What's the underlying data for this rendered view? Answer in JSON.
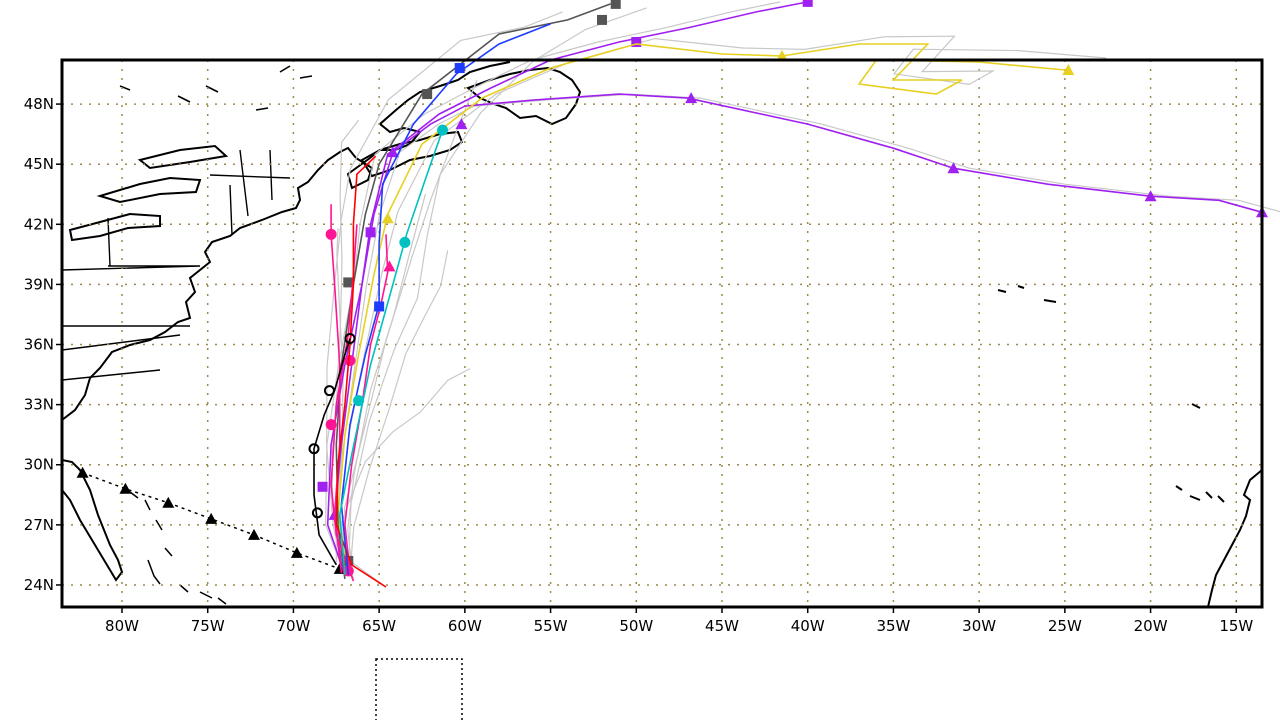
{
  "map": {
    "lon_range": [
      -83.5,
      -13.5
    ],
    "lat_range": [
      22.9,
      50.2
    ],
    "gridline_style": "dotted",
    "gridline_color": "#9c8a4a",
    "coastline_color": "#000000",
    "x_ticks": [
      {
        "lon": -80,
        "label": "80W"
      },
      {
        "lon": -75,
        "label": "75W"
      },
      {
        "lon": -70,
        "label": "70W"
      },
      {
        "lon": -65,
        "label": "65W"
      },
      {
        "lon": -60,
        "label": "60W"
      },
      {
        "lon": -55,
        "label": "55W"
      },
      {
        "lon": -50,
        "label": "50W"
      },
      {
        "lon": -45,
        "label": "45W"
      },
      {
        "lon": -40,
        "label": "40W"
      },
      {
        "lon": -35,
        "label": "35W"
      },
      {
        "lon": -30,
        "label": "30W"
      },
      {
        "lon": -25,
        "label": "25W"
      },
      {
        "lon": -20,
        "label": "20W"
      },
      {
        "lon": -15,
        "label": "15W"
      }
    ],
    "y_ticks": [
      {
        "lat": 24,
        "label": "24N"
      },
      {
        "lat": 27,
        "label": "27N"
      },
      {
        "lat": 30,
        "label": "30N"
      },
      {
        "lat": 33,
        "label": "33N"
      },
      {
        "lat": 36,
        "label": "36N"
      },
      {
        "lat": 39,
        "label": "39N"
      },
      {
        "lat": 42,
        "label": "42N"
      },
      {
        "lat": 45,
        "label": "45N"
      },
      {
        "lat": 48,
        "label": "48N"
      }
    ]
  },
  "observed_track": {
    "name": "observed-track",
    "color": "#000000",
    "style": "dotted",
    "marker": "triangle",
    "points": [
      [
        -82.3,
        29.6
      ],
      [
        -79.8,
        28.8
      ],
      [
        -77.3,
        28.1
      ],
      [
        -74.8,
        27.3
      ],
      [
        -72.3,
        26.5
      ],
      [
        -69.8,
        25.6
      ],
      [
        -67.3,
        24.8
      ]
    ]
  },
  "forecast_tracks": [
    {
      "color": "#a020f0",
      "marker": "triangle",
      "points": [
        [
          -67.2,
          25.0
        ],
        [
          -67.6,
          27.5
        ],
        [
          -67.2,
          31.0
        ],
        [
          -66.6,
          35.0
        ],
        [
          -66.0,
          39.0
        ],
        [
          -65.3,
          42.5
        ],
        [
          -64.2,
          45.6
        ],
        [
          -62.0,
          47.0
        ],
        [
          -60.0,
          47.9
        ],
        [
          -56.0,
          48.2
        ],
        [
          -51.0,
          48.5
        ],
        [
          -47.0,
          48.3
        ],
        [
          -40.0,
          47.0
        ],
        [
          -35.0,
          45.8
        ],
        [
          -31.5,
          44.8
        ],
        [
          -26.0,
          44.0
        ],
        [
          -20.0,
          43.4
        ],
        [
          -16.0,
          43.2
        ],
        [
          -13.5,
          42.6
        ]
      ],
      "markers": [
        [
          -67.6,
          27.5
        ],
        [
          -64.2,
          45.6
        ],
        [
          -60.2,
          47.0
        ],
        [
          -46.8,
          48.3
        ],
        [
          -31.5,
          44.8
        ],
        [
          -20.0,
          43.4
        ],
        [
          -13.5,
          42.6
        ]
      ]
    },
    {
      "color": "#a020f0",
      "marker": "square",
      "points": [
        [
          -67.0,
          24.5
        ],
        [
          -68.0,
          27.0
        ],
        [
          -67.8,
          31.0
        ],
        [
          -67.0,
          35.0
        ],
        [
          -66.0,
          39.0
        ],
        [
          -65.5,
          42.0
        ],
        [
          -64.5,
          45.5
        ],
        [
          -61.5,
          47.5
        ],
        [
          -58.5,
          48.8
        ],
        [
          -55.0,
          50.2
        ],
        [
          -51.0,
          51.1
        ],
        [
          -47.0,
          51.8
        ],
        [
          -43.0,
          52.6
        ],
        [
          -40.0,
          53.1
        ]
      ],
      "markers": [
        [
          -68.3,
          28.9
        ],
        [
          -65.5,
          41.6
        ],
        [
          -50.0,
          51.1
        ],
        [
          -40.0,
          53.1
        ]
      ]
    },
    {
      "color": "#e8d020",
      "marker": "triangle",
      "points": [
        [
          -66.8,
          24.5
        ],
        [
          -67.4,
          27.5
        ],
        [
          -67.0,
          31.5
        ],
        [
          -66.2,
          35.5
        ],
        [
          -65.3,
          39.5
        ],
        [
          -64.5,
          42.5
        ],
        [
          -62.5,
          46.0
        ],
        [
          -59.0,
          48.3
        ],
        [
          -55.0,
          49.8
        ],
        [
          -50.0,
          51.0
        ],
        [
          -45.0,
          50.5
        ],
        [
          -41.5,
          50.4
        ],
        [
          -37.0,
          51.0
        ],
        [
          -33.0,
          51.0
        ],
        [
          -35.0,
          49.2
        ],
        [
          -31.0,
          49.2
        ],
        [
          -32.5,
          48.5
        ],
        [
          -37.0,
          49.0
        ],
        [
          -36.0,
          50.2
        ],
        [
          -30.0,
          50.1
        ],
        [
          -25.0,
          49.7
        ]
      ],
      "markers": [
        [
          -64.5,
          42.3
        ],
        [
          -41.5,
          50.4
        ],
        [
          -24.8,
          49.7
        ]
      ]
    },
    {
      "color": "#555555",
      "marker": "square",
      "points": [
        [
          -67.0,
          24.3
        ],
        [
          -67.4,
          27.0
        ],
        [
          -67.5,
          31.0
        ],
        [
          -67.2,
          35.0
        ],
        [
          -66.5,
          39.0
        ],
        [
          -65.8,
          42.5
        ],
        [
          -65.0,
          45.0
        ],
        [
          -62.5,
          48.5
        ],
        [
          -58.0,
          51.5
        ],
        [
          -54.0,
          52.2
        ],
        [
          -51.5,
          53.0
        ]
      ],
      "markers": [
        [
          -66.8,
          25.2
        ],
        [
          -66.8,
          39.1
        ],
        [
          -62.2,
          48.5
        ],
        [
          -52.0,
          52.2
        ],
        [
          -51.2,
          53.0
        ]
      ]
    },
    {
      "color": "#ff1493",
      "marker": "circle",
      "points": [
        [
          -66.5,
          24.2
        ],
        [
          -67.5,
          26.5
        ],
        [
          -67.8,
          29.0
        ],
        [
          -67.5,
          33.0
        ],
        [
          -66.8,
          36.5
        ],
        [
          -66.5,
          39.5
        ],
        [
          -66.3,
          42.0
        ]
      ],
      "markers": [
        [
          -66.8,
          24.7
        ],
        [
          -67.8,
          32.0
        ],
        [
          -66.7,
          35.2
        ]
      ]
    },
    {
      "color": "#ff1493",
      "marker": "circle",
      "points": [
        [
          -67.2,
          24.6
        ],
        [
          -67.6,
          27.5
        ],
        [
          -67.3,
          31.0
        ],
        [
          -67.3,
          35.0
        ],
        [
          -67.6,
          39.0
        ],
        [
          -67.8,
          41.5
        ],
        [
          -67.8,
          43.0
        ]
      ],
      "markers": [
        [
          -67.8,
          41.5
        ]
      ]
    },
    {
      "color": "#ff1493",
      "marker": "triangle",
      "points": [
        [
          -66.7,
          24.6
        ],
        [
          -67.0,
          27.0
        ],
        [
          -66.6,
          30.0
        ],
        [
          -66.0,
          33.0
        ],
        [
          -65.5,
          36.0
        ],
        [
          -64.9,
          38.0
        ],
        [
          -64.5,
          39.6
        ],
        [
          -64.6,
          41.5
        ]
      ],
      "markers": [
        [
          -64.4,
          39.9
        ]
      ]
    },
    {
      "color": "#ff0000",
      "marker": "none",
      "points": [
        [
          -64.6,
          23.9
        ],
        [
          -66.6,
          25.0
        ],
        [
          -67.5,
          27.0
        ],
        [
          -67.4,
          30.0
        ],
        [
          -67.0,
          33.0
        ],
        [
          -66.7,
          36.0
        ],
        [
          -66.5,
          39.0
        ],
        [
          -66.5,
          42.0
        ],
        [
          -66.3,
          44.5
        ],
        [
          -65.2,
          45.4
        ]
      ],
      "markers": []
    },
    {
      "color": "#1e3cff",
      "marker": "square",
      "points": [
        [
          -66.8,
          24.5
        ],
        [
          -67.2,
          28.0
        ],
        [
          -66.7,
          32.0
        ],
        [
          -65.8,
          35.5
        ],
        [
          -65.0,
          38.0
        ],
        [
          -65.0,
          41.0
        ],
        [
          -64.8,
          44.0
        ],
        [
          -63.0,
          47.0
        ],
        [
          -60.5,
          49.5
        ],
        [
          -58.0,
          51.0
        ],
        [
          -55.0,
          52.0
        ]
      ],
      "markers": [
        [
          -65.0,
          37.9
        ],
        [
          -60.3,
          49.8
        ]
      ]
    },
    {
      "color": "#00c0c0",
      "marker": "circle",
      "points": [
        [
          -67.0,
          24.5
        ],
        [
          -67.3,
          27.5
        ],
        [
          -66.6,
          30.5
        ],
        [
          -65.5,
          35.0
        ],
        [
          -64.2,
          39.0
        ],
        [
          -63.4,
          41.5
        ],
        [
          -62.2,
          44.5
        ],
        [
          -61.3,
          46.7
        ]
      ],
      "markers": [
        [
          -66.2,
          33.2
        ],
        [
          -63.5,
          41.1
        ],
        [
          -61.3,
          46.7
        ]
      ]
    },
    {
      "color": "#000000",
      "marker": "circle",
      "points": [
        [
          -67.5,
          25.0
        ],
        [
          -68.5,
          26.5
        ],
        [
          -68.8,
          28.5
        ],
        [
          -68.8,
          30.8
        ],
        [
          -68.2,
          32.5
        ],
        [
          -67.6,
          33.7
        ],
        [
          -67.0,
          35.5
        ],
        [
          -66.7,
          36.3
        ]
      ],
      "markers": [
        [
          -68.6,
          27.6
        ],
        [
          -68.8,
          30.8
        ],
        [
          -67.9,
          33.7
        ],
        [
          -66.7,
          36.3
        ]
      ]
    }
  ]
}
